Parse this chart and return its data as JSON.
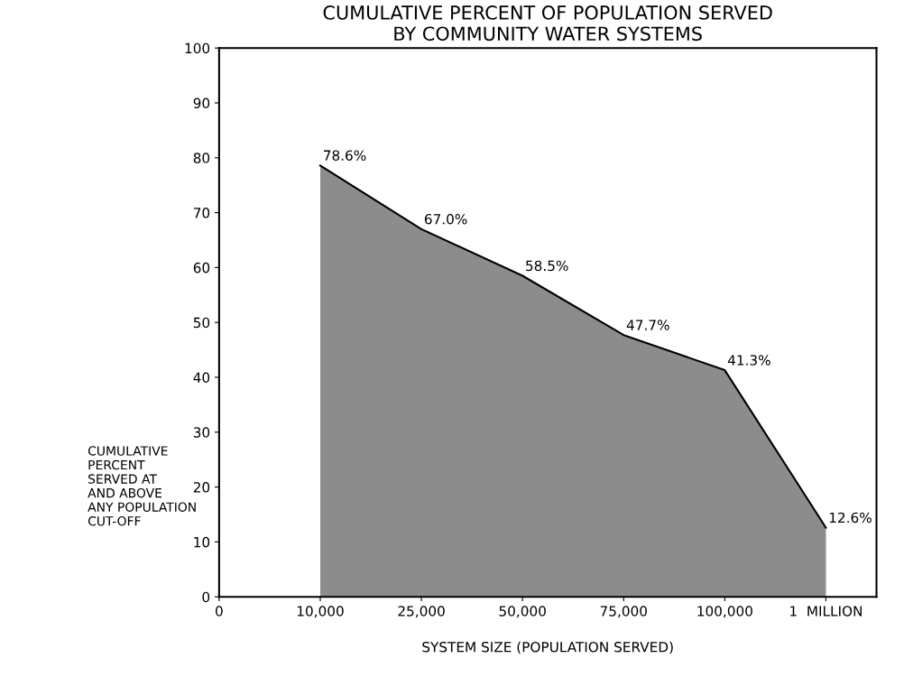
{
  "chart_data": {
    "type": "area",
    "title": "CUMULATIVE PERCENT OF POPULATION SERVED\nBY COMMUNITY WATER SYSTEMS",
    "xlabel": "SYSTEM SIZE (POPULATION SERVED)",
    "ylabel": "CUMULATIVE\nPERCENT\nSERVED AT\nAND ABOVE\nANY POPULATION\nCUT-OFF",
    "categories": [
      "0",
      "10,000",
      "25,000",
      "50,000",
      "75,000",
      "100,000",
      "1  MILLION"
    ],
    "values": [
      null,
      78.6,
      67.0,
      58.5,
      47.7,
      41.3,
      12.6
    ],
    "value_labels": [
      null,
      "78.6%",
      "67.0%",
      "58.5%",
      "47.7%",
      "41.3%",
      "12.6%"
    ],
    "color": "#8c8c8c",
    "ylim": [
      0,
      100
    ],
    "yticks": [
      0,
      10,
      20,
      30,
      40,
      50,
      60,
      70,
      80,
      90,
      100
    ],
    "grid": false,
    "legend": false
  }
}
